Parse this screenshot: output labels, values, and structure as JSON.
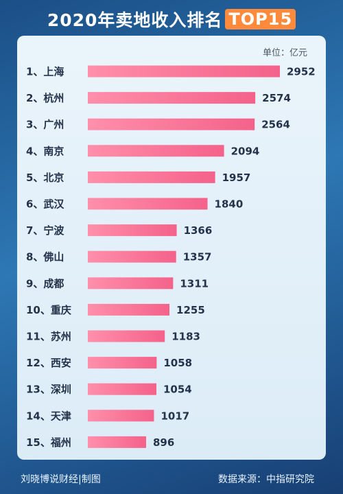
{
  "header": {
    "title_main": "2020年卖地收入排名",
    "title_highlight": "TOP15"
  },
  "unit_label": "单位：亿元",
  "footer": {
    "left": "刘晓博说财经|制图",
    "right": "数据来源：中指研究院"
  },
  "watermark": "刘晓博说财经",
  "colors": {
    "bar": "#f4628a",
    "bar_light": "#ff8fab",
    "highlight": "#ff8a3c"
  },
  "chart_data": {
    "type": "bar",
    "orientation": "horizontal",
    "title": "2020年卖地收入排名TOP15",
    "unit": "亿元",
    "categories": [
      "1、上海",
      "2、杭州",
      "3、广州",
      "4、南京",
      "5、北京",
      "6、武汉",
      "7、宁波",
      "8、佛山",
      "9、成都",
      "10、重庆",
      "11、苏州",
      "12、西安",
      "13、深圳",
      "14、天津",
      "15、福州"
    ],
    "values": [
      2952,
      2574,
      2564,
      2094,
      1957,
      1840,
      1366,
      1357,
      1311,
      1255,
      1183,
      1058,
      1054,
      1017,
      896
    ],
    "xlim": [
      0,
      2952
    ],
    "grid": false,
    "legend": "none"
  }
}
